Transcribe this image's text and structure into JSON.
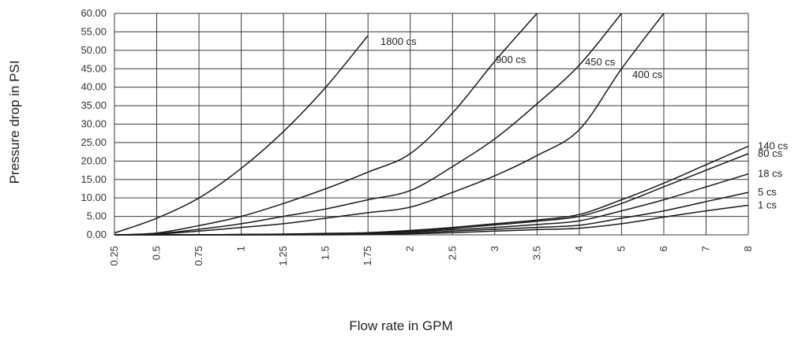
{
  "chart_data": {
    "type": "line",
    "xlabel": "Flow rate in GPM",
    "ylabel": "Pressure drop in PSI",
    "ylim": [
      0,
      60
    ],
    "x_categories": [
      "0.25",
      "0.5",
      "0.75",
      "1",
      "1.25",
      "1.5",
      "1.75",
      "2",
      "2.5",
      "3",
      "3.5",
      "4",
      "5",
      "6",
      "7",
      "8"
    ],
    "y_ticks": [
      "0.00",
      "5.00",
      "10.00",
      "15.00",
      "20.00",
      "25.00",
      "30.00",
      "35.00",
      "40.00",
      "45.00",
      "50.00",
      "55.00",
      "60.00"
    ],
    "grid": true,
    "series": [
      {
        "name": "1800 cs",
        "x": [
          "0.25",
          "0.5",
          "0.75",
          "1",
          "1.25",
          "1.5",
          "1.75"
        ],
        "values": [
          0.5,
          4.5,
          10,
          18,
          28,
          40,
          54
        ]
      },
      {
        "name": "900 cs",
        "x": [
          "0.25",
          "0.5",
          "0.75",
          "1",
          "1.25",
          "1.5",
          "1.75",
          "2",
          "2.5",
          "3",
          "3.5"
        ],
        "values": [
          0,
          0.5,
          2.5,
          5,
          8.5,
          12.5,
          17,
          22,
          33,
          47,
          62
        ]
      },
      {
        "name": "450 cs",
        "x": [
          "0.25",
          "0.5",
          "0.75",
          "1",
          "1.25",
          "1.5",
          "1.75",
          "2",
          "2.5",
          "3",
          "3.5",
          "4",
          "5"
        ],
        "values": [
          0,
          0.3,
          1.5,
          3,
          5,
          7,
          9.5,
          12,
          18.5,
          26,
          35.5,
          46,
          62
        ]
      },
      {
        "name": "400 cs",
        "x": [
          "0.25",
          "0.5",
          "0.75",
          "1",
          "1.25",
          "1.5",
          "1.75",
          "2",
          "2.5",
          "3",
          "3.5",
          "4",
          "5",
          "6"
        ],
        "values": [
          0,
          0.2,
          1,
          2,
          3,
          4.5,
          6,
          7.5,
          11.5,
          16,
          21.5,
          28.5,
          45,
          62
        ]
      },
      {
        "name": "140 cs",
        "x": [
          "0.25",
          "0.5",
          "0.75",
          "1",
          "1.25",
          "1.5",
          "1.75",
          "2",
          "2.5",
          "3",
          "3.5",
          "4",
          "5",
          "6",
          "7",
          "8"
        ],
        "values": [
          0,
          0,
          0,
          0.1,
          0.2,
          0.4,
          0.6,
          1.2,
          2,
          3,
          4,
          5.5,
          9.5,
          14,
          19,
          24
        ]
      },
      {
        "name": "80 cs",
        "x": [
          "0.25",
          "0.5",
          "0.75",
          "1",
          "1.25",
          "1.5",
          "1.75",
          "2",
          "2.5",
          "3",
          "3.5",
          "4",
          "5",
          "6",
          "7",
          "8"
        ],
        "values": [
          0,
          0,
          0,
          0.1,
          0.2,
          0.3,
          0.5,
          1,
          1.8,
          2.7,
          3.7,
          5,
          8.5,
          13,
          17.5,
          22
        ]
      },
      {
        "name": "18 cs",
        "x": [
          "0.25",
          "0.5",
          "0.75",
          "1",
          "1.25",
          "1.5",
          "1.75",
          "2",
          "2.5",
          "3",
          "3.5",
          "4",
          "5",
          "6",
          "7",
          "8"
        ],
        "values": [
          0,
          0,
          0,
          0,
          0.1,
          0.2,
          0.4,
          0.8,
          1.4,
          2,
          2.8,
          3.8,
          6.5,
          9.5,
          13,
          16.5
        ]
      },
      {
        "name": "5 cs",
        "x": [
          "0.25",
          "0.5",
          "0.75",
          "1",
          "1.25",
          "1.5",
          "1.75",
          "2",
          "2.5",
          "3",
          "3.5",
          "4",
          "5",
          "6",
          "7",
          "8"
        ],
        "values": [
          0,
          0,
          0,
          0,
          0,
          0.1,
          0.3,
          0.5,
          1,
          1.5,
          2,
          2.6,
          4.5,
          6.5,
          9,
          11.5
        ]
      },
      {
        "name": "1 cs",
        "x": [
          "0.25",
          "0.5",
          "0.75",
          "1",
          "1.25",
          "1.5",
          "1.75",
          "2",
          "2.5",
          "3",
          "3.5",
          "4",
          "5",
          "6",
          "7",
          "8"
        ],
        "values": [
          0,
          0,
          0,
          0,
          0,
          0,
          0.1,
          0.3,
          0.6,
          1,
          1.4,
          1.8,
          3,
          4.8,
          6.5,
          8
        ]
      }
    ]
  }
}
